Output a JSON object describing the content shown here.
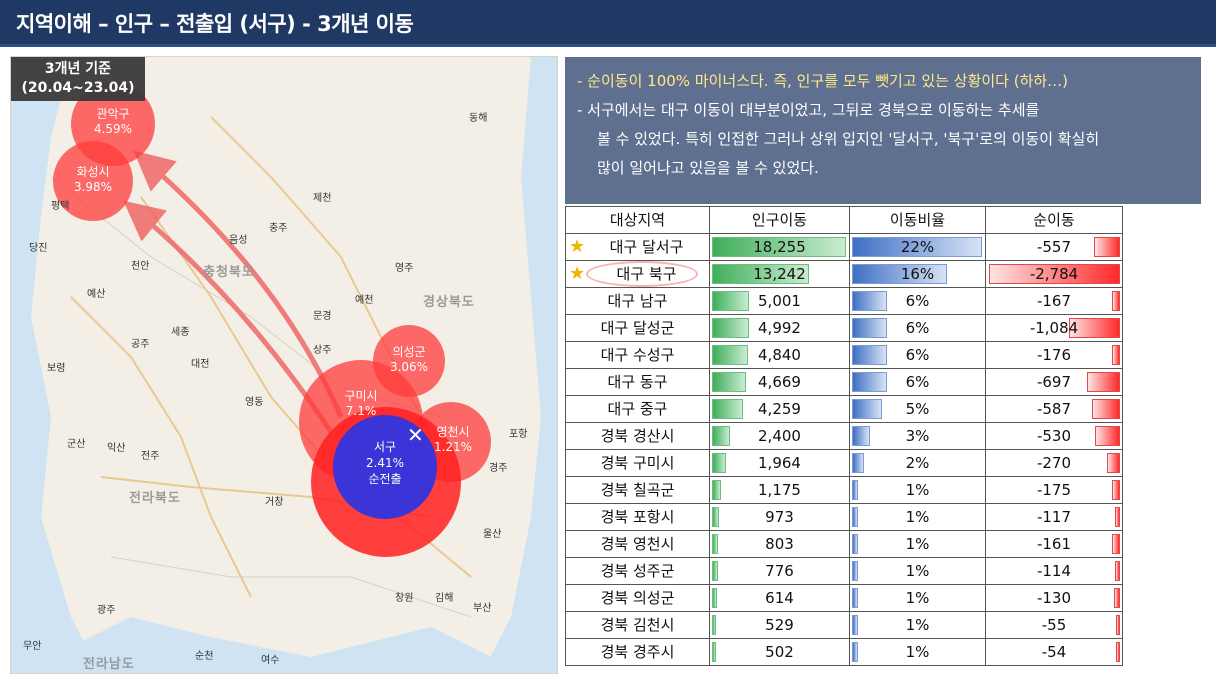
{
  "header": {
    "title": "지역이해 – 인구 – 전출입 (서구) - 3개년 이동"
  },
  "map": {
    "period_line1": "3개년 기준",
    "period_line2": "(20.04~23.04)",
    "regions": [
      "충청북도",
      "경상북도",
      "전라북도",
      "전라남도"
    ],
    "cities": [
      "제천",
      "충주",
      "음성",
      "당진",
      "예산",
      "공주",
      "세종",
      "대전",
      "보령",
      "군산",
      "익산",
      "전주",
      "예천",
      "문경",
      "상주",
      "영주",
      "포항",
      "경주",
      "울산",
      "부산",
      "김해",
      "창원",
      "거창",
      "순천",
      "광주",
      "무안",
      "영동",
      "동해",
      "평택",
      "천안",
      "여수"
    ],
    "bubbles": [
      {
        "name": "관악구",
        "pct": "4.59%"
      },
      {
        "name": "화성시",
        "pct": "3.98%"
      },
      {
        "name": "의성군",
        "pct": "3.06%"
      },
      {
        "name": "영천시",
        "pct": "1.21%"
      },
      {
        "name": "구미시",
        "pct": "7.1%"
      }
    ],
    "origin": {
      "name": "서구",
      "pct": "2.41%",
      "label": "순전출"
    },
    "colors": {
      "bubble": "#ff3b3b",
      "origin": "#3b34d6",
      "arrow": "#f06060"
    }
  },
  "notes": [
    "-  순이동이 100% 마이너스다. 즉, 인구를 모두 뺏기고 있는 상황이다 (하하…)",
    "-  서구에서는 대구 이동이 대부분이었고, 그뒤로 경북으로 이동하는 추세를",
    "볼 수 있었다. 특히 인접한 그러나 상위 입지인 '달서구, '북구'로의 이동이 확실히",
    "많이 일어나고 있음을 볼 수 있었다."
  ],
  "table": {
    "headers": [
      "대상지역",
      "인구이동",
      "이동비율",
      "순이동"
    ],
    "rows": [
      {
        "region": "대구 달서구",
        "moves": "18,255",
        "moves_val": 18255,
        "ratio": "22%",
        "ratio_val": 22,
        "net": "-557",
        "net_val": -557,
        "star": true
      },
      {
        "region": "대구 북구",
        "moves": "13,242",
        "moves_val": 13242,
        "ratio": "16%",
        "ratio_val": 16,
        "net": "-2,784",
        "net_val": -2784,
        "star": true
      },
      {
        "region": "대구 남구",
        "moves": "5,001",
        "moves_val": 5001,
        "ratio": "6%",
        "ratio_val": 6,
        "net": "-167",
        "net_val": -167
      },
      {
        "region": "대구 달성군",
        "moves": "4,992",
        "moves_val": 4992,
        "ratio": "6%",
        "ratio_val": 6,
        "net": "-1,084",
        "net_val": -1084
      },
      {
        "region": "대구 수성구",
        "moves": "4,840",
        "moves_val": 4840,
        "ratio": "6%",
        "ratio_val": 6,
        "net": "-176",
        "net_val": -176
      },
      {
        "region": "대구 동구",
        "moves": "4,669",
        "moves_val": 4669,
        "ratio": "6%",
        "ratio_val": 6,
        "net": "-697",
        "net_val": -697
      },
      {
        "region": "대구 중구",
        "moves": "4,259",
        "moves_val": 4259,
        "ratio": "5%",
        "ratio_val": 5,
        "net": "-587",
        "net_val": -587
      },
      {
        "region": "경북 경산시",
        "moves": "2,400",
        "moves_val": 2400,
        "ratio": "3%",
        "ratio_val": 3,
        "net": "-530",
        "net_val": -530
      },
      {
        "region": "경북 구미시",
        "moves": "1,964",
        "moves_val": 1964,
        "ratio": "2%",
        "ratio_val": 2,
        "net": "-270",
        "net_val": -270
      },
      {
        "region": "경북 칠곡군",
        "moves": "1,175",
        "moves_val": 1175,
        "ratio": "1%",
        "ratio_val": 1,
        "net": "-175",
        "net_val": -175
      },
      {
        "region": "경북 포항시",
        "moves": "973",
        "moves_val": 973,
        "ratio": "1%",
        "ratio_val": 1,
        "net": "-117",
        "net_val": -117
      },
      {
        "region": "경북 영천시",
        "moves": "803",
        "moves_val": 803,
        "ratio": "1%",
        "ratio_val": 1,
        "net": "-161",
        "net_val": -161
      },
      {
        "region": "경북 성주군",
        "moves": "776",
        "moves_val": 776,
        "ratio": "1%",
        "ratio_val": 1,
        "net": "-114",
        "net_val": -114
      },
      {
        "region": "경북 의성군",
        "moves": "614",
        "moves_val": 614,
        "ratio": "1%",
        "ratio_val": 1,
        "net": "-130",
        "net_val": -130
      },
      {
        "region": "경북 김천시",
        "moves": "529",
        "moves_val": 529,
        "ratio": "1%",
        "ratio_val": 1,
        "net": "-55",
        "net_val": -55
      },
      {
        "region": "경북 경주시",
        "moves": "502",
        "moves_val": 502,
        "ratio": "1%",
        "ratio_val": 1,
        "net": "-54",
        "net_val": -54
      }
    ]
  }
}
